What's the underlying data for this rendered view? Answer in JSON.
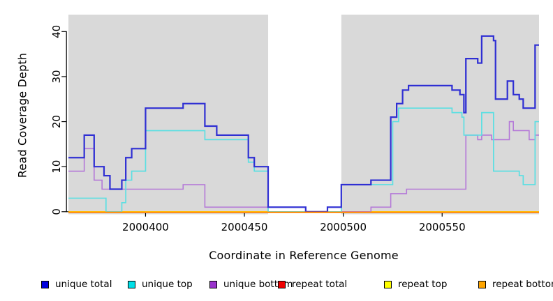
{
  "chart": {
    "xlabel": "Coordinate in Reference Genome",
    "ylabel": "Read Coverage Depth",
    "panel_band_color": "#d9d9d9",
    "axis_color": "#000000"
  },
  "legend": {
    "items": [
      {
        "label": "unique total",
        "color": "#0000dd"
      },
      {
        "label": "unique top",
        "color": "#00e0e8"
      },
      {
        "label": "unique bottom",
        "color": "#9932cc"
      },
      {
        "label": "repeat total",
        "color": "#ee0000"
      },
      {
        "label": "repeat top",
        "color": "#ffff00"
      },
      {
        "label": "repeat bottom",
        "color": "#ffa500"
      }
    ]
  },
  "chart_data": {
    "type": "line",
    "subtype": "step-coverage",
    "title": "",
    "xlabel": "Coordinate in Reference Genome",
    "ylabel": "Read Coverage Depth",
    "xlim": [
      2000361,
      2000599
    ],
    "ylim": [
      0,
      44
    ],
    "x_ticks": [
      2000400,
      2000450,
      2000500,
      2000550
    ],
    "y_ticks": [
      0,
      10,
      20,
      30,
      40
    ],
    "grid": false,
    "legend_position": "bottom",
    "background_bands": [
      {
        "from": 2000361,
        "to": 2000462
      },
      {
        "from": 2000499,
        "to": 2000599
      }
    ],
    "series": [
      {
        "name": "unique total",
        "line_color": "#2f2fd3",
        "width": 2.2,
        "steps": [
          [
            2000361,
            12
          ],
          [
            2000369,
            17
          ],
          [
            2000374,
            10
          ],
          [
            2000379,
            8
          ],
          [
            2000382,
            5
          ],
          [
            2000388,
            7
          ],
          [
            2000390,
            12
          ],
          [
            2000393,
            14
          ],
          [
            2000400,
            23
          ],
          [
            2000419,
            24
          ],
          [
            2000430,
            19
          ],
          [
            2000436,
            17
          ],
          [
            2000452,
            12
          ],
          [
            2000455,
            10
          ],
          [
            2000462,
            1
          ],
          [
            2000481,
            0
          ],
          [
            2000492,
            1
          ],
          [
            2000499,
            6
          ],
          [
            2000514,
            7
          ],
          [
            2000524,
            21
          ],
          [
            2000527,
            24
          ],
          [
            2000530,
            27
          ],
          [
            2000533,
            28
          ],
          [
            2000555,
            27
          ],
          [
            2000559,
            26
          ],
          [
            2000561,
            22
          ],
          [
            2000562,
            34
          ],
          [
            2000568,
            33
          ],
          [
            2000570,
            39
          ],
          [
            2000576,
            38
          ],
          [
            2000577,
            25
          ],
          [
            2000583,
            29
          ],
          [
            2000586,
            26
          ],
          [
            2000589,
            25
          ],
          [
            2000591,
            23
          ],
          [
            2000597,
            37
          ]
        ]
      },
      {
        "name": "unique top",
        "line_color": "#5cdfe2",
        "width": 1.7,
        "steps": [
          [
            2000361,
            3
          ],
          [
            2000380,
            0
          ],
          [
            2000388,
            2
          ],
          [
            2000390,
            7
          ],
          [
            2000393,
            9
          ],
          [
            2000400,
            18
          ],
          [
            2000430,
            16
          ],
          [
            2000452,
            11
          ],
          [
            2000455,
            9
          ],
          [
            2000462,
            0
          ],
          [
            2000499,
            6
          ],
          [
            2000525,
            20
          ],
          [
            2000528,
            23
          ],
          [
            2000555,
            22
          ],
          [
            2000560,
            21
          ],
          [
            2000561,
            17
          ],
          [
            2000570,
            22
          ],
          [
            2000576,
            9
          ],
          [
            2000589,
            8
          ],
          [
            2000591,
            6
          ],
          [
            2000597,
            20
          ]
        ]
      },
      {
        "name": "unique bottom",
        "line_color": "#b478d8",
        "width": 1.6,
        "steps": [
          [
            2000361,
            9
          ],
          [
            2000369,
            14
          ],
          [
            2000374,
            7
          ],
          [
            2000378,
            5
          ],
          [
            2000419,
            6
          ],
          [
            2000430,
            1
          ],
          [
            2000481,
            0
          ],
          [
            2000514,
            1
          ],
          [
            2000524,
            4
          ],
          [
            2000532,
            5
          ],
          [
            2000562,
            17
          ],
          [
            2000568,
            16
          ],
          [
            2000570,
            17
          ],
          [
            2000575,
            16
          ],
          [
            2000584,
            20
          ],
          [
            2000586,
            18
          ],
          [
            2000594,
            16
          ],
          [
            2000597,
            17
          ]
        ]
      },
      {
        "name": "repeat total",
        "line_color": "#cc1111",
        "width": 1.5,
        "steps": [
          [
            2000361,
            0
          ]
        ]
      },
      {
        "name": "repeat top",
        "line_color": "#ffd700",
        "width": 1.5,
        "steps": [
          [
            2000361,
            0
          ]
        ]
      },
      {
        "name": "repeat bottom",
        "line_color": "#ff9015",
        "width": 2.4,
        "steps": [
          [
            2000361,
            0
          ]
        ]
      }
    ]
  }
}
